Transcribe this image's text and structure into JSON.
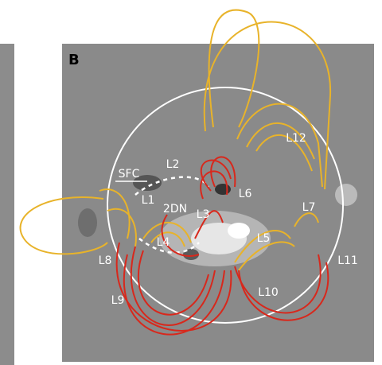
{
  "panel_label": "B",
  "labels": [
    "SFC",
    "L1",
    "L2",
    "L3",
    "L4",
    "L5",
    "L6",
    "L7",
    "L8",
    "L9",
    "L10",
    "L11",
    "L12",
    "2DN"
  ]
}
